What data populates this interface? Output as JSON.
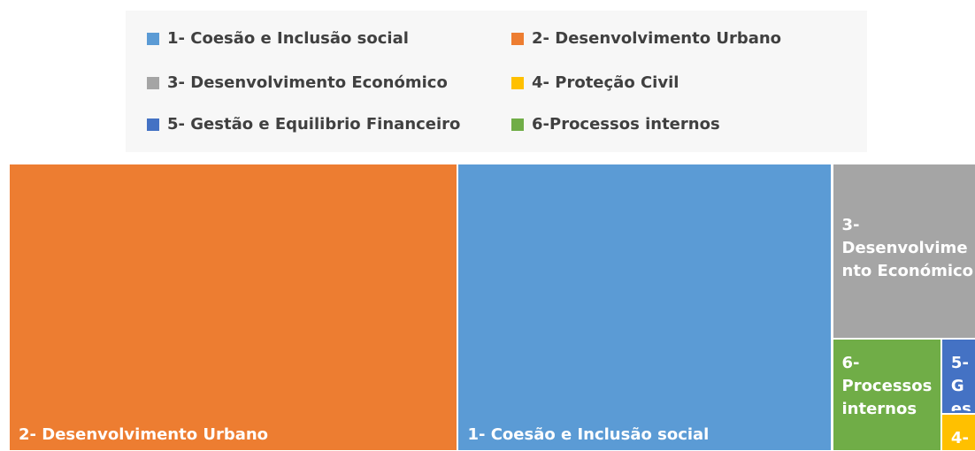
{
  "chart_data": {
    "type": "treemap",
    "categories": [
      "1- Coesão e Inclusão social",
      "2- Desenvolvimento Urbano",
      "3- Desenvolvimento Económico",
      "4- Proteção Civil",
      "5- Gestão e Equilibrio Financeiro",
      "6-Processos internos"
    ],
    "values": [
      38.6,
      46.3,
      9.2,
      0.5,
      1.0,
      4.4
    ],
    "colors": [
      "#5b9bd5",
      "#ed7d31",
      "#a5a5a5",
      "#ffc000",
      "#4472c4",
      "#70ad47"
    ],
    "legend": "top"
  }
}
